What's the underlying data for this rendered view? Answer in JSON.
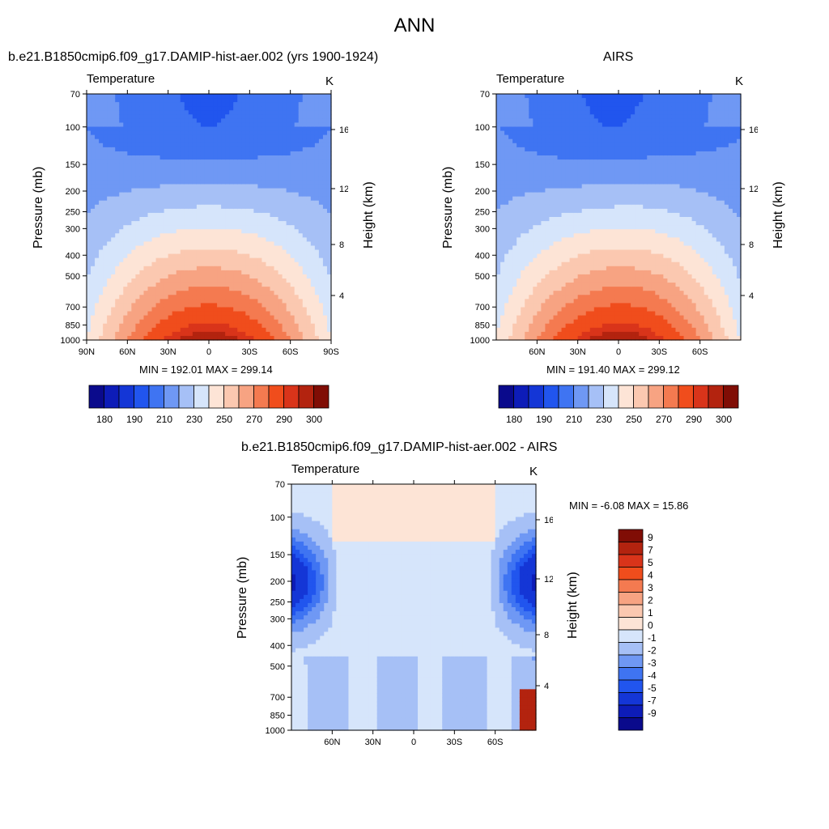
{
  "figure_title": "ANN",
  "colors": {
    "abs_scale": [
      "#0a0a8c",
      "#0d1cb8",
      "#1436d6",
      "#2155ee",
      "#3f74f2",
      "#6f98f4",
      "#a6c0f6",
      "#d6e5fb",
      "#fde4d6",
      "#fbc8b0",
      "#f7a382",
      "#f47a50",
      "#f04d1c",
      "#d9341a",
      "#b3230f",
      "#800d05"
    ],
    "diff_scale": [
      "#0a0a8c",
      "#0d1cb8",
      "#1436d6",
      "#2155ee",
      "#3f74f2",
      "#6f98f4",
      "#a6c0f6",
      "#d6e5fb",
      "#fde4d6",
      "#fbc8b0",
      "#f7a382",
      "#f47a50",
      "#f04d1c",
      "#d9341a",
      "#b3230f",
      "#800d05"
    ]
  },
  "panel_model": {
    "title": "b.e21.B1850cmip6.f09_g17.DAMIP-hist-aer.002 (yrs 1900-1924)",
    "variable": "Temperature",
    "units": "K",
    "min_max": "MIN = 192.01  MAX = 299.14"
  },
  "panel_obs": {
    "title": "AIRS",
    "variable": "Temperature",
    "units": "K",
    "min_max": "MIN = 191.40  MAX = 299.12"
  },
  "panel_diff": {
    "title": "b.e21.B1850cmip6.f09_g17.DAMIP-hist-aer.002 - AIRS",
    "variable": "Temperature",
    "units": "K",
    "min_max": "MIN =  -6.08  MAX =  15.86"
  },
  "axes": {
    "ylabel": "Pressure (mb)",
    "y2label": "Height (km)"
  },
  "chart_data": [
    {
      "type": "heatmap",
      "title": "b.e21.B1850cmip6.f09_g17.DAMIP-hist-aer.002 (yrs 1900-1924)",
      "subtitle_left": "Temperature",
      "subtitle_right": "K",
      "xlabel": "",
      "ylabel": "Pressure (mb)",
      "y2label": "Height (km)",
      "x_ticks": [
        "90N",
        "60N",
        "30N",
        "0",
        "30S",
        "60S",
        "90S"
      ],
      "y_ticks": [
        "70",
        "100",
        "150",
        "200",
        "250",
        "300",
        "400",
        "500",
        "700",
        "850",
        "1000"
      ],
      "y2_ticks": [
        "16",
        "12",
        "8",
        "4"
      ],
      "y_scale": "log",
      "ylim": [
        1000,
        70
      ],
      "colorbar_labels": [
        "180",
        "190",
        "210",
        "230",
        "250",
        "270",
        "290",
        "300"
      ],
      "min": 192.01,
      "max": 299.14
    },
    {
      "type": "heatmap",
      "title": "AIRS",
      "subtitle_left": "Temperature",
      "subtitle_right": "K",
      "xlabel": "",
      "ylabel": "Pressure (mb)",
      "y2label": "Height (km)",
      "x_ticks": [
        "60N",
        "30N",
        "0",
        "30S",
        "60S"
      ],
      "y_ticks": [
        "70",
        "100",
        "150",
        "200",
        "250",
        "300",
        "400",
        "500",
        "700",
        "850",
        "1000"
      ],
      "y2_ticks": [
        "16",
        "12",
        "8",
        "4"
      ],
      "y_scale": "log",
      "ylim": [
        1000,
        70
      ],
      "colorbar_labels": [
        "180",
        "190",
        "210",
        "230",
        "250",
        "270",
        "290",
        "300"
      ],
      "min": 191.4,
      "max": 299.12
    },
    {
      "type": "heatmap",
      "title": "b.e21.B1850cmip6.f09_g17.DAMIP-hist-aer.002 - AIRS",
      "subtitle_left": "Temperature",
      "subtitle_right": "K",
      "xlabel": "",
      "ylabel": "Pressure (mb)",
      "y2label": "Height (km)",
      "x_ticks": [
        "60N",
        "30N",
        "0",
        "30S",
        "60S"
      ],
      "y_ticks": [
        "70",
        "100",
        "150",
        "200",
        "250",
        "300",
        "400",
        "500",
        "700",
        "850",
        "1000"
      ],
      "y2_ticks": [
        "16",
        "12",
        "8",
        "4"
      ],
      "y_scale": "log",
      "ylim": [
        1000,
        70
      ],
      "colorbar_labels": [
        "9",
        "7",
        "5",
        "4",
        "3",
        "2",
        "1",
        "0",
        "-1",
        "-2",
        "-3",
        "-4",
        "-5",
        "-7",
        "-9"
      ],
      "min": -6.08,
      "max": 15.86
    }
  ]
}
